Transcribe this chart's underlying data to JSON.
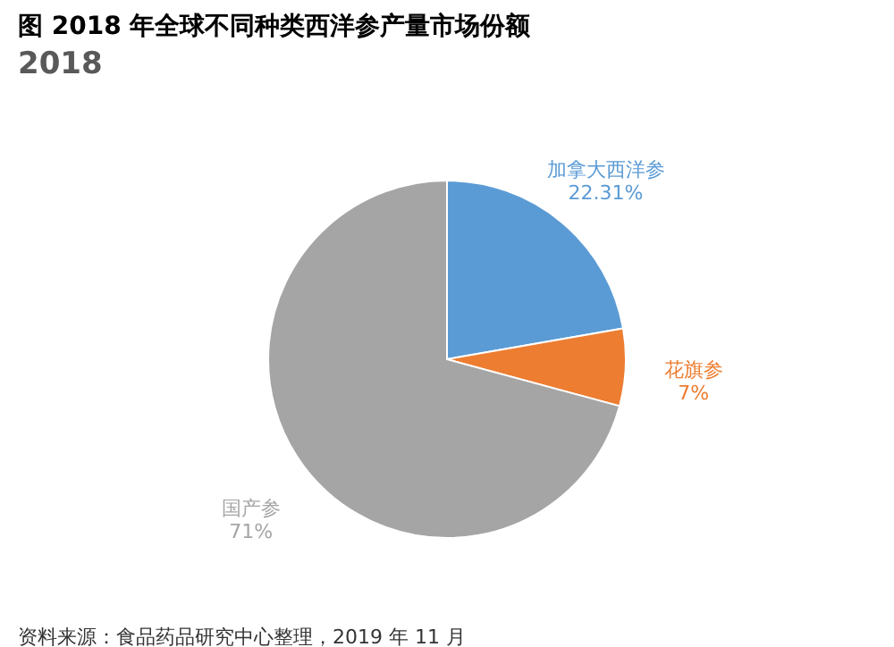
{
  "chart_data": {
    "type": "pie",
    "title": "图 2018 年全球不同种类西洋参产量市场份额",
    "subtitle": "2018",
    "categories": [
      "加拿大西洋参",
      "花旗参",
      "国产参"
    ],
    "values": [
      22.31,
      7,
      71
    ],
    "colors": [
      "#5b9bd5",
      "#ed7d31",
      "#a5a5a5"
    ],
    "value_labels": [
      "22.31%",
      "7%",
      "71%"
    ],
    "legend": false,
    "annotations": [
      "资料来源：食品药品研究中心整理，2019 年 11 月"
    ]
  }
}
